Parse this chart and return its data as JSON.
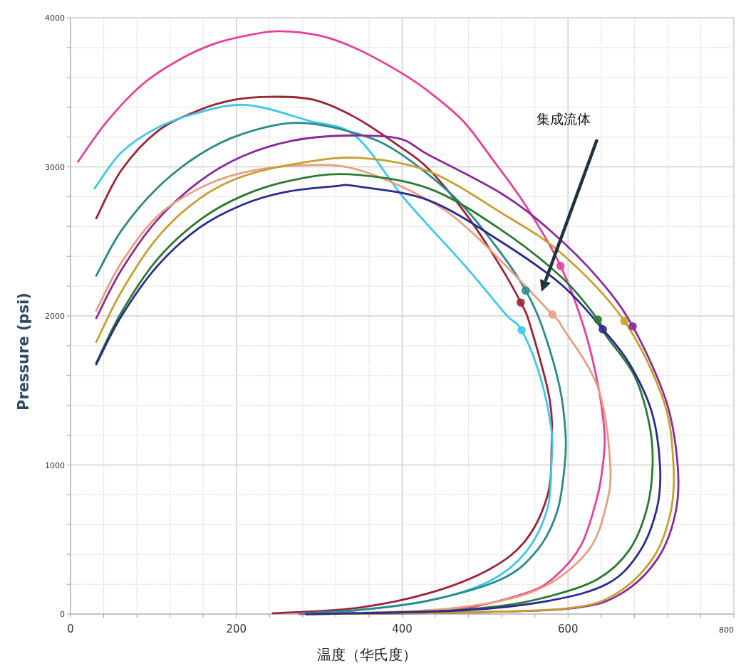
{
  "chart_data": {
    "type": "line",
    "xlabel": "温度（华氏度）",
    "ylabel": "Pressure (psi)",
    "xlim": [
      0,
      800
    ],
    "ylim": [
      0,
      4000
    ],
    "xticks": [
      0,
      {
        "value": 40,
        "label": null
      },
      {
        "value": 80,
        "label": null
      },
      {
        "value": 120,
        "label": null
      },
      {
        "value": 160,
        "label": null
      },
      200,
      {
        "value": 240,
        "label": null
      },
      {
        "value": 280,
        "label": null
      },
      {
        "value": 320,
        "label": null
      },
      {
        "value": 360,
        "label": null
      },
      400,
      {
        "value": 440,
        "label": null
      },
      {
        "value": 480,
        "label": null
      },
      {
        "value": 520,
        "label": null
      },
      {
        "value": 560,
        "label": null
      },
      600,
      {
        "value": 640,
        "label": null
      },
      {
        "value": 680,
        "label": null
      },
      {
        "value": 720,
        "label": null
      },
      {
        "value": 760,
        "label": null
      },
      800
    ],
    "yticks": [
      0,
      {
        "value": 200,
        "label": null
      },
      {
        "value": 400,
        "label": null
      },
      {
        "value": 600,
        "label": null
      },
      {
        "value": 800,
        "label": null
      },
      1000,
      {
        "value": 1200,
        "label": null
      },
      {
        "value": 1400,
        "label": null
      },
      {
        "value": 1600,
        "label": null
      },
      {
        "value": 1800,
        "label": null
      },
      2000,
      {
        "value": 2200,
        "label": null
      },
      {
        "value": 2400,
        "label": null
      },
      {
        "value": 2600,
        "label": null
      },
      {
        "value": 2800,
        "label": null
      },
      3000,
      {
        "value": 3200,
        "label": null
      },
      {
        "value": 3400,
        "label": null
      },
      {
        "value": 3600,
        "label": null
      },
      {
        "value": 3800,
        "label": null
      },
      4000
    ],
    "grid": true,
    "marker": "none",
    "line_style": "solid",
    "annotations": [
      "集成流体"
    ],
    "series": [
      {
        "color": "#e8409a",
        "x": [
          9,
          44,
          87,
          130,
          173,
          216,
          252,
          301,
          344,
          396,
          432,
          473,
          507,
          549,
          591,
          619,
          636,
          644,
          642,
          635,
          616,
          585,
          549,
          461,
          362,
          276
        ],
        "values": [
          3035,
          3305,
          3555,
          3715,
          3825,
          3885,
          3910,
          3880,
          3795,
          3640,
          3505,
          3310,
          3065,
          2740,
          2335,
          1925,
          1540,
          1210,
          1000,
          780,
          465,
          255,
          140,
          25,
          5,
          0
        ]
      },
      {
        "color": "#9b2335",
        "x": [
          31,
          61,
          104,
          155,
          198,
          241,
          293,
          344,
          396,
          432,
          476,
          516,
          543,
          555,
          578,
          580,
          575,
          549,
          505,
          432,
          344,
          244
        ],
        "values": [
          2655,
          2975,
          3235,
          3380,
          3450,
          3470,
          3450,
          3330,
          3140,
          2985,
          2690,
          2355,
          2090,
          1925,
          1435,
          1080,
          790,
          495,
          300,
          140,
          40,
          5
        ]
      },
      {
        "color": "#3ec8e8",
        "x": [
          29,
          61,
          104,
          155,
          213,
          287,
          344,
          403,
          476,
          525,
          544,
          566,
          580,
          580,
          575,
          549,
          505,
          432,
          344,
          280
        ],
        "values": [
          2855,
          3095,
          3260,
          3365,
          3415,
          3310,
          3205,
          2785,
          2335,
          2010,
          1905,
          1600,
          1240,
          1015,
          705,
          415,
          220,
          90,
          25,
          5
        ]
      },
      {
        "color": "#2a8a8c",
        "x": [
          31,
          61,
          104,
          155,
          207,
          273,
          344,
          396,
          467,
          520,
          549,
          569,
          590,
          597,
          596,
          587,
          563,
          520,
          432,
          344,
          280
        ],
        "values": [
          2270,
          2570,
          2855,
          3080,
          3220,
          3295,
          3225,
          3095,
          2775,
          2415,
          2170,
          1925,
          1520,
          1210,
          1000,
          690,
          430,
          235,
          90,
          25,
          5
        ]
      },
      {
        "color": "#8b2a9a",
        "x": [
          31,
          61,
          104,
          155,
          207,
          267,
          333,
          396,
          432,
          520,
          578,
          636,
          678,
          718,
          732,
          730,
          709,
          665,
          607,
          473,
          284
        ],
        "values": [
          1985,
          2305,
          2640,
          2900,
          3070,
          3175,
          3210,
          3190,
          3080,
          2820,
          2575,
          2255,
          1930,
          1435,
          1015,
          690,
          380,
          140,
          40,
          10,
          0
        ]
      },
      {
        "color": "#e8a080",
        "x": [
          31,
          61,
          104,
          155,
          207,
          276,
          344,
          432,
          490,
          581,
          593,
          636,
          651,
          645,
          625,
          578,
          520,
          430,
          284
        ],
        "values": [
          2035,
          2355,
          2665,
          2855,
          2960,
          3010,
          2985,
          2775,
          2530,
          2010,
          1925,
          1520,
          1000,
          705,
          430,
          205,
          90,
          25,
          0
        ]
      },
      {
        "color": "#c8a030",
        "x": [
          31,
          61,
          104,
          155,
          207,
          276,
          349,
          432,
          520,
          593,
          668,
          715,
          727,
          724,
          703,
          659,
          602,
          465,
          284
        ],
        "values": [
          1825,
          2160,
          2520,
          2785,
          2935,
          3025,
          3060,
          2970,
          2690,
          2415,
          1965,
          1435,
          1015,
          690,
          380,
          140,
          40,
          10,
          0
        ]
      },
      {
        "color": "#2a7a30",
        "x": [
          31,
          61,
          104,
          155,
          207,
          267,
          336,
          432,
          520,
          593,
          636,
          645,
          680,
          698,
          702,
          695,
          674,
          636,
          578,
          520,
          430,
          284
        ],
        "values": [
          1685,
          2020,
          2375,
          2640,
          2805,
          2910,
          2950,
          2855,
          2575,
          2255,
          1975,
          1875,
          1600,
          1275,
          1000,
          705,
          430,
          235,
          120,
          55,
          15,
          0
        ]
      },
      {
        "color": "#2a2a90",
        "x": [
          31,
          61,
          104,
          155,
          207,
          258,
          319,
          344,
          432,
          520,
          593,
          642,
          674,
          701,
          711,
          707,
          686,
          648,
          578,
          473,
          284
        ],
        "values": [
          1675,
          1995,
          2330,
          2590,
          2745,
          2830,
          2870,
          2870,
          2775,
          2495,
          2205,
          1910,
          1680,
          1355,
          985,
          705,
          415,
          205,
          90,
          25,
          0
        ]
      },
      {
        "type": "scatter",
        "marker": "circle",
        "x": [
          591,
          549,
          543,
          581,
          544,
          636,
          642,
          668,
          678
        ],
        "values": [
          2335,
          2170,
          2090,
          2010,
          1905,
          1975,
          1910,
          1965,
          1930
        ],
        "colors": [
          "#e8409a",
          "#2a8a8c",
          "#9b2335",
          "#e8a080",
          "#3ec8e8",
          "#2a7a30",
          "#2a2a90",
          "#c8a030",
          "#8b2a9a"
        ]
      }
    ]
  }
}
